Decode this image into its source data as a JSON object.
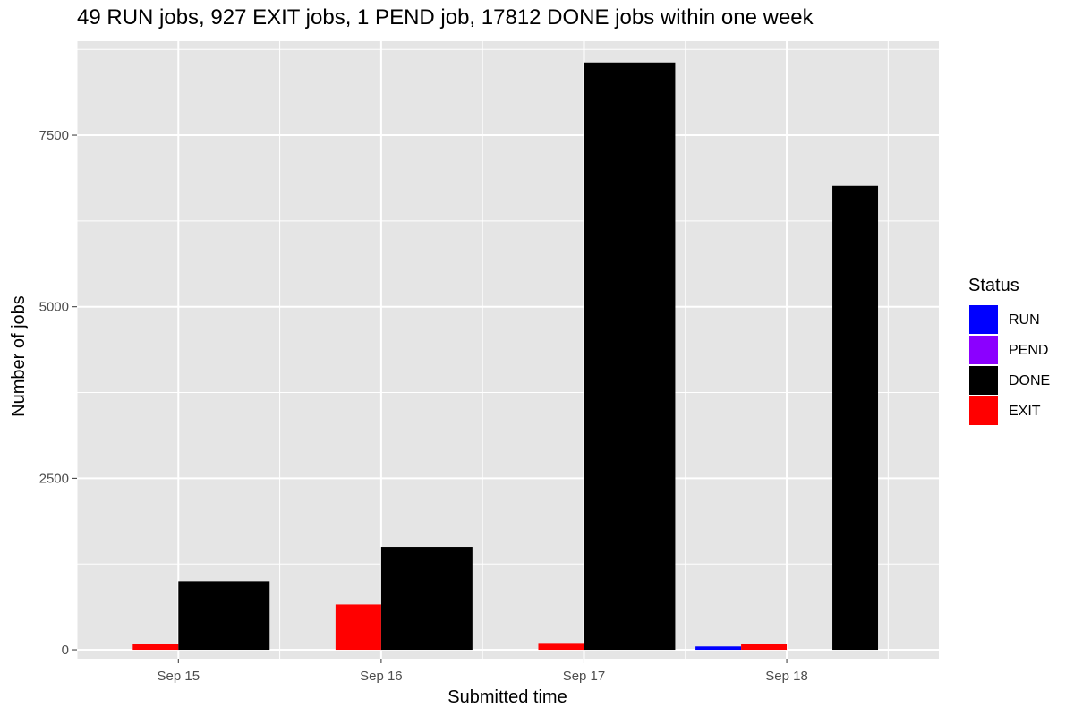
{
  "chart_data": {
    "type": "bar",
    "title": "49 RUN jobs, 927 EXIT jobs, 1 PEND job, 17812 DONE jobs within one week",
    "xlabel": "Submitted time",
    "ylabel": "Number of jobs",
    "categories": [
      "Sep 15",
      "Sep 16",
      "Sep 17",
      "Sep 18"
    ],
    "category_dates": [
      "2023-09-15",
      "2023-09-16",
      "2023-09-17",
      "2023-09-18"
    ],
    "x_axis": {
      "type": "date",
      "range": [
        "2023-09-14 12:00",
        "2023-09-18 18:00"
      ],
      "ticks": [
        "Sep 15",
        "Sep 16",
        "Sep 17",
        "Sep 18"
      ]
    },
    "ylim": [
      -130,
      8870
    ],
    "yticks": [
      0,
      2500,
      5000,
      7500
    ],
    "grid": true,
    "legend": {
      "title": "Status",
      "position": "right",
      "entries": [
        "RUN",
        "PEND",
        "DONE",
        "EXIT"
      ]
    },
    "colors": {
      "RUN": "#0000ff",
      "PEND": "#8b00ff",
      "DONE": "#000000",
      "EXIT": "#ff0000",
      "panel_background": "#e5e5e5",
      "grid": "#ffffff"
    },
    "bars": [
      {
        "category": "Sep 15",
        "status": "EXIT",
        "value": 80
      },
      {
        "category": "Sep 15",
        "status": "DONE",
        "value": 1000
      },
      {
        "category": "Sep 16",
        "status": "EXIT",
        "value": 660
      },
      {
        "category": "Sep 16",
        "status": "DONE",
        "value": 1500
      },
      {
        "category": "Sep 17",
        "status": "EXIT",
        "value": 100
      },
      {
        "category": "Sep 17",
        "status": "DONE",
        "value": 8560
      },
      {
        "category": "Sep 18",
        "status": "RUN",
        "value": 49
      },
      {
        "category": "Sep 18",
        "status": "EXIT",
        "value": 90
      },
      {
        "category": "Sep 18",
        "status": "DONE",
        "value": 6760
      }
    ]
  }
}
